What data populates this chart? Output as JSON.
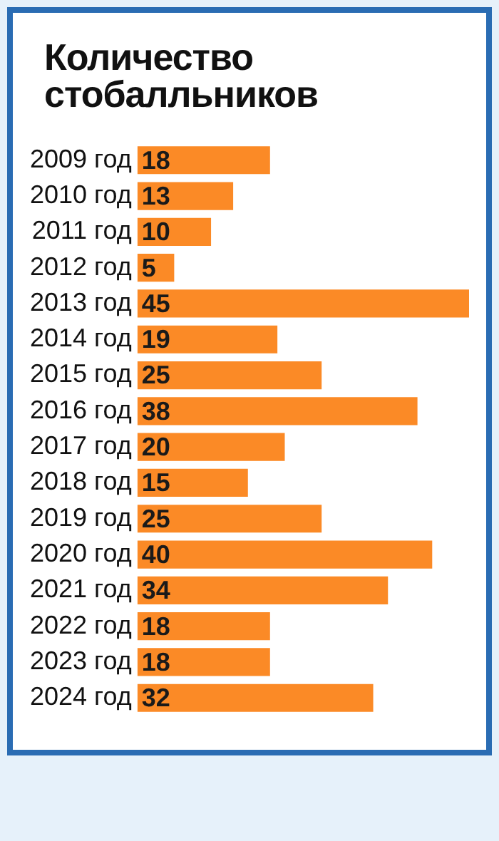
{
  "chart_data": {
    "type": "bar",
    "orientation": "horizontal",
    "title": "Количество стобалльников",
    "categories": [
      "2009 год",
      "2010 год",
      "2011 год",
      "2012 год",
      "2013 год",
      "2014 год",
      "2015 год",
      "2016 год",
      "2017 год",
      "2018 год",
      "2019 год",
      "2020 год",
      "2021 год",
      "2022 год",
      "2023 год",
      "2024 год"
    ],
    "values": [
      18,
      13,
      10,
      5,
      45,
      19,
      25,
      38,
      20,
      15,
      25,
      40,
      34,
      18,
      18,
      32
    ],
    "color": "#fb8a26",
    "data_labels": true,
    "grid": false,
    "legend": false
  }
}
